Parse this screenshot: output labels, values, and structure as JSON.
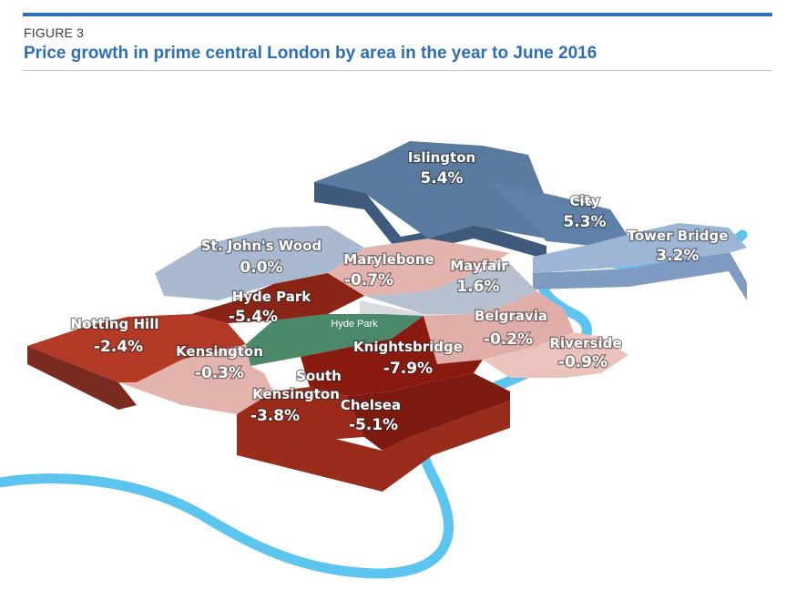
{
  "figure_label": "FIGURE 3",
  "title": "Price growth in prime central London by area in the year to June 2016",
  "park_label": "Hyde Park",
  "colors": {
    "accent": "#2c6fb6",
    "river": "#5bc4ef",
    "strong_fall": "#8a1a10",
    "fall": "#b23a26",
    "slight_fall": "#e3b3ad",
    "flat": "#a9b9cf",
    "rise": "#5a7aa0",
    "park": "#4a8a6a"
  },
  "areas": [
    {
      "name": "Islington",
      "value": "5.4%"
    },
    {
      "name": "City",
      "value": "5.3%"
    },
    {
      "name": "Tower Bridge",
      "value": "3.2%"
    },
    {
      "name": "St. John's Wood",
      "value": "0.0%"
    },
    {
      "name": "Marylebone",
      "value": "-0.7%"
    },
    {
      "name": "Mayfair",
      "value": "1.6%"
    },
    {
      "name": "Hyde Park",
      "value": "-5.4%"
    },
    {
      "name": "Notting Hill",
      "value": "-2.4%"
    },
    {
      "name": "Belgravia",
      "value": "-0.2%"
    },
    {
      "name": "Kensington",
      "value": "-0.3%"
    },
    {
      "name": "Knightsbridge",
      "value": "-7.9%"
    },
    {
      "name": "Riverside",
      "value": "-0.9%"
    },
    {
      "name": "South Kensington",
      "value": "-3.8%"
    },
    {
      "name": "Chelsea",
      "value": "-5.1%"
    }
  ]
}
